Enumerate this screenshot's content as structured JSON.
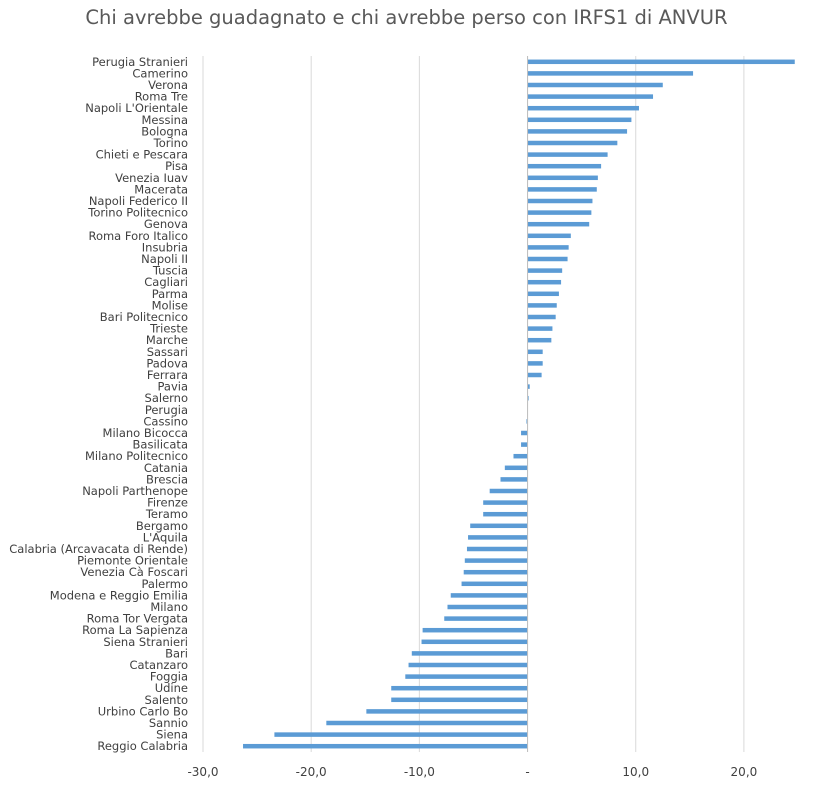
{
  "chart_data": {
    "type": "bar",
    "orientation": "horizontal",
    "title": "Chi avrebbe guadagnato e chi avrebbe perso con IRFS1 di ANVUR",
    "xlabel": "",
    "ylabel": "",
    "xlim": [
      -30,
      25
    ],
    "xticks": [
      -30,
      -20,
      -10,
      0,
      10,
      20
    ],
    "xtick_labels": [
      "-30,0",
      "-20,0",
      "-10,0",
      "-",
      "10,0",
      "20,0"
    ],
    "grid": "vertical",
    "legend": "none",
    "bar_color": "#5b9bd5",
    "categories": [
      "Perugia Stranieri",
      "Camerino",
      "Verona",
      "Roma Tre",
      "Napoli L'Orientale",
      "Messina",
      "Bologna",
      "Torino",
      "Chieti e Pescara",
      "Pisa",
      "Venezia Iuav",
      "Macerata",
      "Napoli Federico II",
      "Torino Politecnico",
      "Genova",
      "Roma Foro Italico",
      "Insubria",
      "Napoli II",
      "Tuscia",
      "Cagliari",
      "Parma",
      "Molise",
      "Bari Politecnico",
      "Trieste",
      "Marche",
      "Sassari",
      "Padova",
      "Ferrara",
      "Pavia",
      "Salerno",
      "Perugia",
      "Cassino",
      "Milano Bicocca",
      "Basilicata",
      "Milano Politecnico",
      "Catania",
      "Brescia",
      "Napoli Parthenope",
      "Firenze",
      "Teramo",
      "Bergamo",
      "L'Aquila",
      "Calabria (Arcavacata di Rende)",
      "Piemonte Orientale",
      "Venezia Cà Foscari",
      "Palermo",
      "Modena e Reggio Emilia",
      "Milano",
      "Roma Tor Vergata",
      "Roma La Sapienza",
      "Siena Stranieri",
      "Bari",
      "Catanzaro",
      "Foggia",
      "Udine",
      "Salento",
      "Urbino Carlo Bo",
      "Sannio",
      "Siena",
      "Reggio Calabria"
    ],
    "values": [
      24.7,
      15.3,
      12.5,
      11.6,
      10.3,
      9.6,
      9.2,
      8.3,
      7.4,
      6.8,
      6.5,
      6.4,
      6.0,
      5.9,
      5.7,
      4.0,
      3.8,
      3.7,
      3.2,
      3.1,
      2.9,
      2.7,
      2.6,
      2.3,
      2.2,
      1.4,
      1.4,
      1.3,
      0.2,
      0.1,
      0.0,
      -0.1,
      -0.6,
      -0.6,
      -1.3,
      -2.1,
      -2.5,
      -3.5,
      -4.1,
      -4.1,
      -5.3,
      -5.5,
      -5.6,
      -5.8,
      -5.9,
      -6.1,
      -7.1,
      -7.4,
      -7.7,
      -9.7,
      -9.8,
      -10.7,
      -11.0,
      -11.3,
      -12.6,
      -12.6,
      -14.9,
      -18.6,
      -23.4,
      -26.3
    ]
  }
}
